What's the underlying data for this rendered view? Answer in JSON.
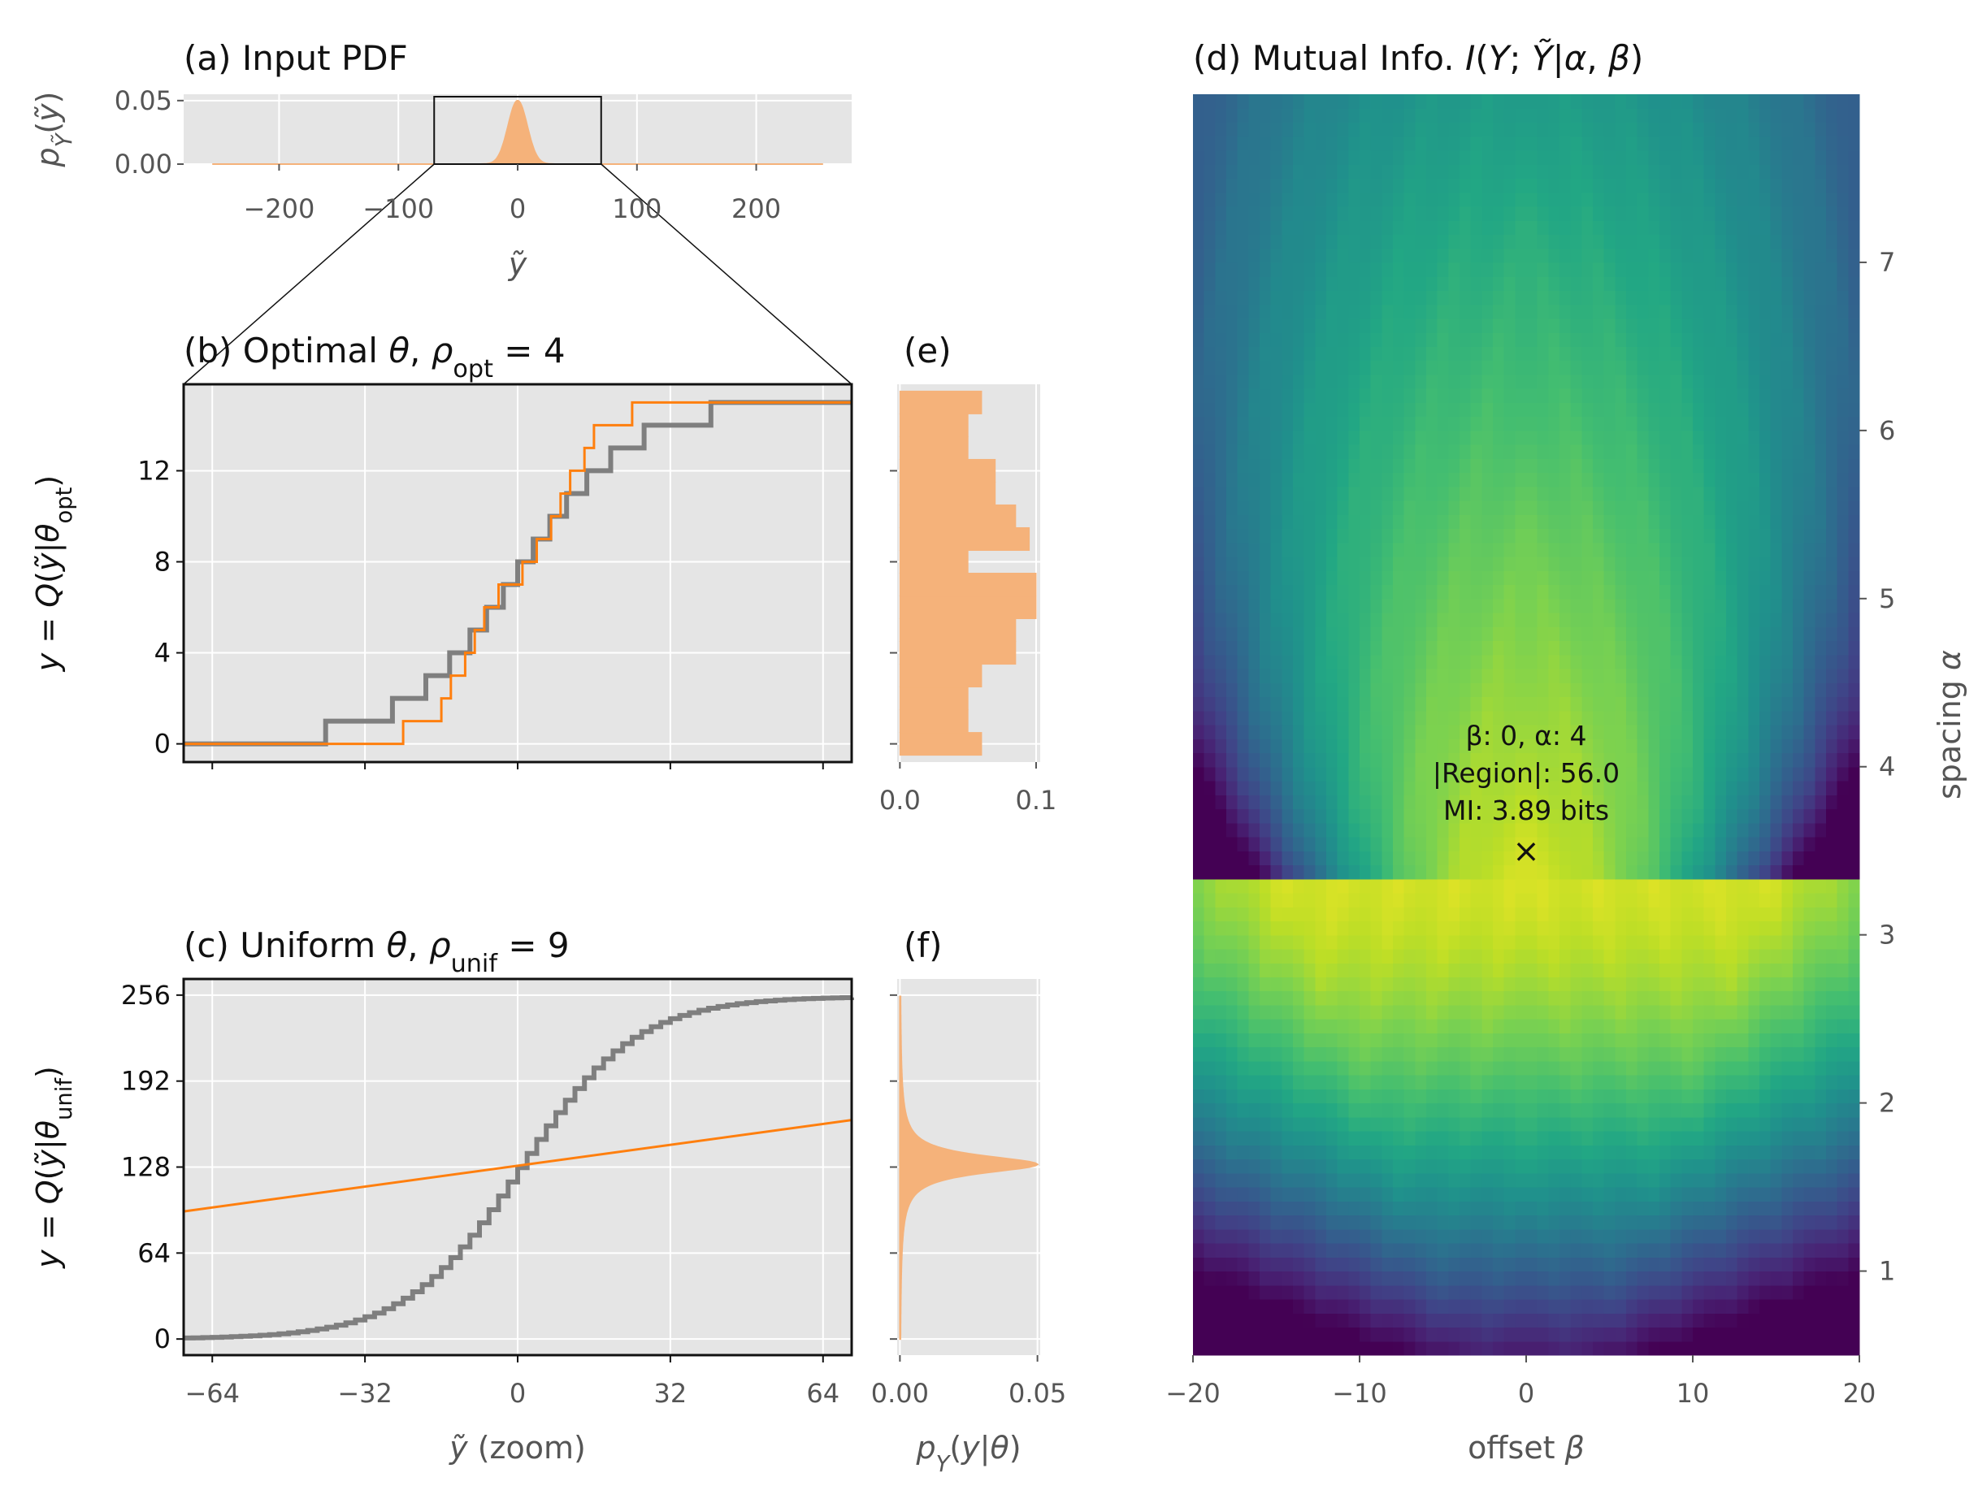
{
  "colors": {
    "orange": "#ff7f0e",
    "orange_fill": "#f5b27a",
    "gray_line": "#7f7f7f",
    "panel_bg": "#e5e5e5",
    "grid": "#ffffff"
  },
  "chart_data": [
    {
      "id": "a",
      "type": "area",
      "title": "(a) Input PDF",
      "xlabel": "ỹ",
      "ylabel": "p_Ỹ(ỹ)",
      "xlim": [
        -280,
        280
      ],
      "ylim": [
        0,
        0.055
      ],
      "xticks": [
        -200,
        -100,
        0,
        100,
        200
      ],
      "xtick_labels": [
        "−200",
        "−100",
        "0",
        "100",
        "200"
      ],
      "yticks": [
        0,
        0.05
      ],
      "ytick_labels": [
        "0.00",
        "0.05"
      ],
      "distribution": {
        "kind": "gaussian",
        "mean": 0,
        "std": 8,
        "peak": 0.05,
        "support": [
          -256,
          256
        ]
      },
      "zoom_box": [
        -70,
        70
      ]
    },
    {
      "id": "b",
      "type": "line",
      "title": "(b) Optimal θ, ρ_opt = 4",
      "ylabel": "y = Q(ỹ|θ_opt)",
      "xlim": [
        -70,
        70
      ],
      "ylim": [
        -0.8,
        15.8
      ],
      "xticks": [
        -64,
        -32,
        0,
        32,
        64
      ],
      "yticks": [
        0,
        4,
        8,
        12
      ],
      "ytick_labels": [
        "0",
        "4",
        "8",
        "12"
      ],
      "series": [
        {
          "kind": "gray_cdf",
          "levels": 15,
          "center": 0,
          "scale": 12
        },
        {
          "kind": "orange_steps",
          "x": [
            -70,
            -24,
            -24,
            -16,
            -16,
            -14,
            -14,
            -11,
            -11,
            -9,
            -9,
            -7,
            -7,
            -4,
            -4,
            -1,
            -1,
            1,
            1,
            4,
            4,
            7,
            7,
            9,
            9,
            11,
            11,
            14,
            14,
            16,
            16,
            24,
            24,
            70
          ],
          "y": [
            0,
            0,
            1,
            1,
            2,
            2,
            3,
            3,
            4,
            4,
            5,
            5,
            6,
            6,
            7,
            7,
            7,
            7,
            8,
            8,
            9,
            9,
            10,
            10,
            11,
            11,
            12,
            12,
            13,
            13,
            14,
            14,
            15,
            15
          ]
        }
      ]
    },
    {
      "id": "e",
      "type": "bar",
      "title": "(e)",
      "orientation": "horizontal",
      "xlim": [
        -0.002,
        0.103
      ],
      "xticks": [
        0.0,
        0.1
      ],
      "xtick_labels": [
        "0.0",
        "0.1"
      ],
      "ylim": [
        -0.8,
        15.8
      ],
      "yticks": [
        0,
        4,
        8,
        12
      ],
      "levels": [
        0,
        1,
        2,
        3,
        4,
        5,
        6,
        7,
        8,
        9,
        10,
        11,
        12,
        13,
        14,
        15
      ],
      "values": [
        0.06,
        0.05,
        0.05,
        0.06,
        0.085,
        0.085,
        0.1,
        0.1,
        0.05,
        0.095,
        0.085,
        0.07,
        0.07,
        0.05,
        0.05,
        0.06
      ]
    },
    {
      "id": "c",
      "type": "line",
      "title": "(c) Uniform θ, ρ_unif = 9",
      "xlabel": "ỹ (zoom)",
      "ylabel": "y = Q(ỹ|θ_unif)",
      "xlim": [
        -70,
        70
      ],
      "ylim": [
        -12,
        268
      ],
      "xticks": [
        -64,
        -32,
        0,
        32,
        64
      ],
      "xtick_labels": [
        "−64",
        "−32",
        "0",
        "32",
        "64"
      ],
      "yticks": [
        0,
        64,
        128,
        192,
        256
      ],
      "ytick_labels": [
        "0",
        "64",
        "128",
        "192",
        "256"
      ],
      "series": [
        {
          "kind": "gray_cdf",
          "levels": 255,
          "step": 16,
          "center": 0,
          "scale": 12
        },
        {
          "kind": "orange_line",
          "x": [
            -70,
            70
          ],
          "y": [
            95,
            163
          ]
        }
      ]
    },
    {
      "id": "f",
      "type": "area",
      "title": "(f)",
      "orientation": "horizontal",
      "xlabel": "p_Y(y|θ)",
      "xlim": [
        -0.001,
        0.051
      ],
      "xticks": [
        0.0,
        0.05
      ],
      "xtick_labels": [
        "0.00",
        "0.05"
      ],
      "ylim": [
        -12,
        268
      ],
      "yticks": [
        0,
        64,
        128,
        192,
        256
      ],
      "distribution": {
        "kind": "cauchy_like",
        "center": 130,
        "width": 8,
        "peak": 0.05
      }
    },
    {
      "id": "d",
      "type": "heatmap",
      "title": "(d) Mutual Info. I(Y; Ỹ|α, β)",
      "xlabel": "offset β",
      "ylabel": "spacing α",
      "xlim": [
        -20,
        20
      ],
      "ylim": [
        0.5,
        8.0
      ],
      "xticks": [
        -20,
        -10,
        0,
        10,
        20
      ],
      "xtick_labels": [
        "−20",
        "−10",
        "0",
        "10",
        "20"
      ],
      "yticks": [
        1,
        2,
        3,
        4,
        5,
        6,
        7
      ],
      "ytick_labels": [
        "1",
        "2",
        "3",
        "4",
        "5",
        "6",
        "7"
      ],
      "colormap": "viridis",
      "marker": {
        "beta": 0,
        "alpha": 3.5,
        "symbol": "×"
      },
      "annotation": [
        "β: 0, α: 4",
        "|Region|: 56.0",
        "MI: 3.89 bits"
      ]
    }
  ]
}
